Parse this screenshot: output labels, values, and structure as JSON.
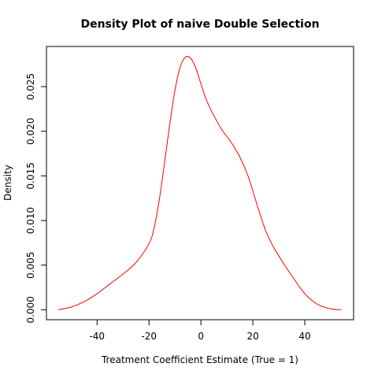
{
  "chart_data": {
    "type": "line",
    "title": "Density Plot of naive Double Selection",
    "xlabel": "Treatment Coefficient Estimate (True = 1)",
    "ylabel": "Density",
    "xlim": [
      -59.5,
      58.8
    ],
    "ylim": [
      -0.00112,
      0.0295
    ],
    "x_ticks": [
      -40,
      -20,
      0,
      20,
      40
    ],
    "x_tick_labels": [
      "-40",
      "-20",
      "0",
      "20",
      "40"
    ],
    "y_ticks": [
      0.0,
      0.005,
      0.01,
      0.015,
      0.02,
      0.025
    ],
    "y_tick_labels": [
      "0.000",
      "0.005",
      "0.010",
      "0.015",
      "0.020",
      "0.025"
    ],
    "grid": false,
    "line_color": "#ff0000",
    "series": [
      {
        "x": [
          -55,
          -50,
          -45,
          -40,
          -35,
          -30,
          -25,
          -20,
          -18,
          -16,
          -14,
          -12,
          -10,
          -8,
          -6,
          -4,
          -2,
          0,
          2,
          4,
          6,
          8,
          10,
          12,
          15,
          18,
          20,
          22,
          25,
          28,
          32,
          35,
          40,
          45,
          50,
          54
        ],
        "y": [
          0.0,
          0.0003,
          0.0009,
          0.0018,
          0.0029,
          0.004,
          0.0053,
          0.0074,
          0.0092,
          0.0124,
          0.0165,
          0.0208,
          0.0246,
          0.0272,
          0.0283,
          0.0282,
          0.0271,
          0.0253,
          0.0236,
          0.0223,
          0.0212,
          0.0202,
          0.0194,
          0.0186,
          0.0171,
          0.0151,
          0.0133,
          0.0114,
          0.0088,
          0.007,
          0.0051,
          0.0038,
          0.0018,
          0.0006,
          0.0001,
          0.0
        ]
      }
    ]
  }
}
